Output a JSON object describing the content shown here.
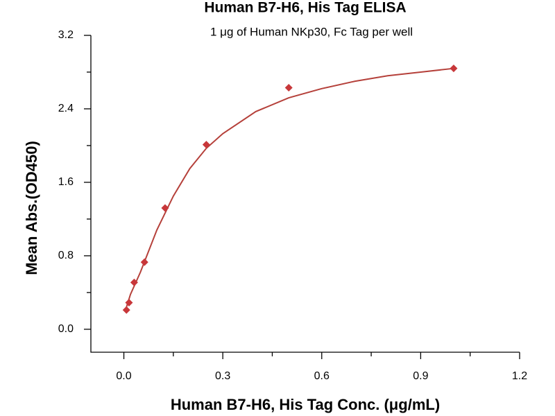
{
  "chart_data": {
    "type": "scatter",
    "title": "Human B7-H6, His Tag ELISA",
    "subtitle": "1 μg of Human NKp30, Fc Tag per well",
    "xlabel": "Human B7-H6, His Tag Conc. (μg/mL)",
    "ylabel": "Mean Abs.(OD450)",
    "xlim": [
      -0.1,
      1.2
    ],
    "ylim": [
      -0.25,
      3.2
    ],
    "xticks": [
      {
        "value": 0,
        "label": "0.0"
      },
      0.3,
      0.6,
      0.9,
      1.2
    ],
    "yticks": [
      {
        "value": 0,
        "label": "0.0"
      },
      0.8,
      1.6,
      2.4,
      3.2
    ],
    "series": [
      {
        "mode": "markers",
        "color": "#c8373a",
        "x": [
          0.0078,
          0.0156,
          0.03125,
          0.0625,
          0.125,
          0.25,
          0.5,
          1.0
        ],
        "values": [
          0.21,
          0.29,
          0.51,
          0.73,
          1.32,
          2.01,
          2.63,
          2.84
        ]
      },
      {
        "mode": "line",
        "color": "#b5403a",
        "x": [
          0.0078,
          0.02,
          0.05,
          0.1,
          0.15,
          0.2,
          0.25,
          0.3,
          0.4,
          0.5,
          0.6,
          0.7,
          0.8,
          0.9,
          1.0
        ],
        "values": [
          0.24,
          0.38,
          0.62,
          1.08,
          1.45,
          1.75,
          1.97,
          2.13,
          2.37,
          2.52,
          2.62,
          2.7,
          2.76,
          2.8,
          2.84
        ]
      }
    ]
  }
}
